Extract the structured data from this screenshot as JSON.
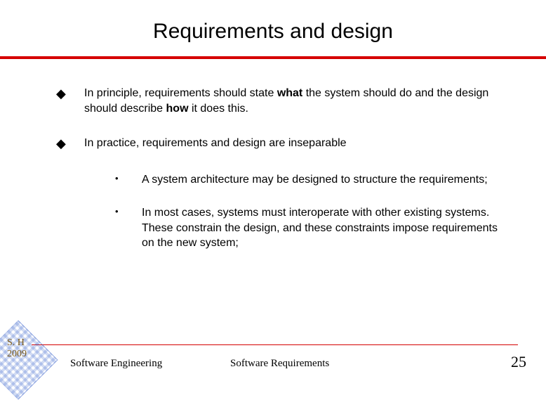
{
  "title": "Requirements and design",
  "bullets": [
    {
      "pre": "In principle, requirements should state ",
      "bold1": "what",
      "mid": " the system should do and the design should describe ",
      "bold2": "how",
      "post": " it does this."
    },
    {
      "text": "In practice, requirements and design are inseparable"
    }
  ],
  "subbullets": [
    "A system architecture may be designed to structure the requirements;",
    "In most cases, systems must interoperate with other existing systems. These constrain the design, and these constraints impose requirements on the new system;"
  ],
  "corner": {
    "line1": "S. H",
    "line2": "2009"
  },
  "footer": {
    "left": "Software Engineering",
    "mid": "Software Requirements"
  },
  "page": "25",
  "colors": {
    "accent": "#d50000",
    "text": "#000000",
    "corner_text": "#7a5a1a",
    "diamond": "rgba(45,90,200,0.25)"
  }
}
